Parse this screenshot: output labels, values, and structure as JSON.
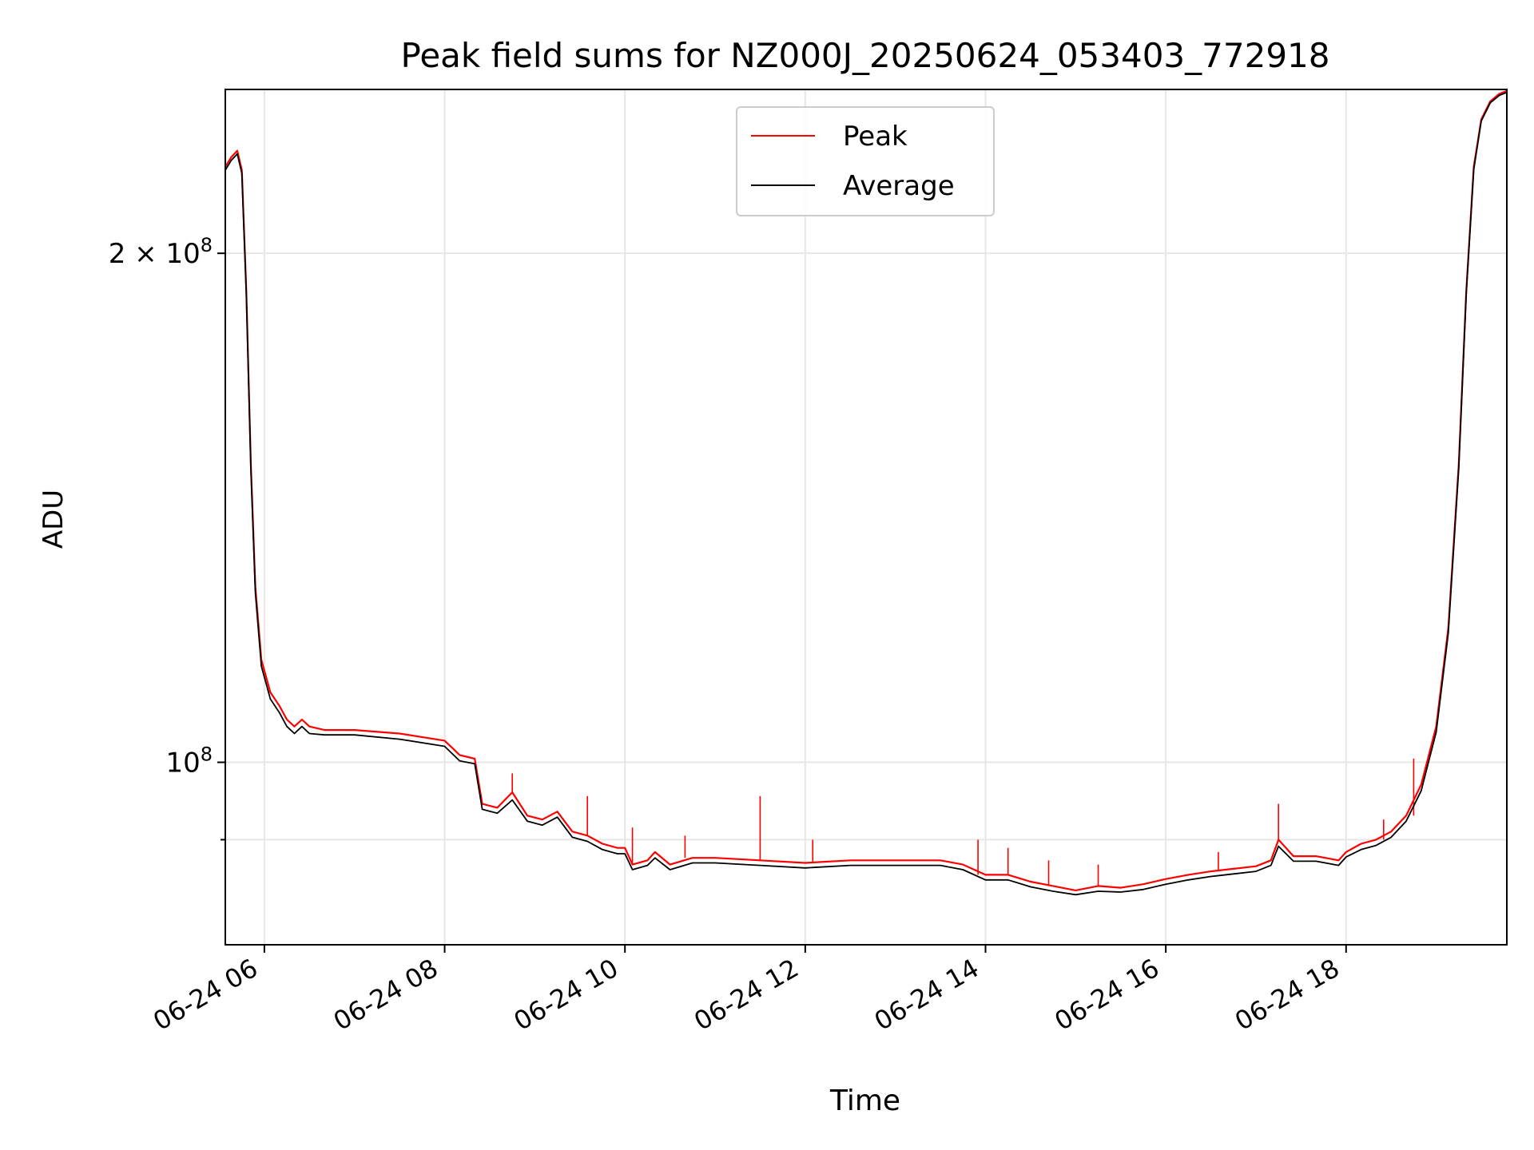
{
  "chart_data": {
    "type": "line",
    "title": "Peak field sums for NZ000J_20250624_053403_772918",
    "xlabel": "Time",
    "ylabel": "ADU",
    "y_scale": "log",
    "grid": true,
    "legend_position": "upper center",
    "x_range": [
      "2025-06-24 05:34",
      "2025-06-24 19:47"
    ],
    "y_range": [
      78000000,
      250000000
    ],
    "x_ticks": [
      {
        "label": "06-24 06",
        "value": "2025-06-24 06:00"
      },
      {
        "label": "06-24 08",
        "value": "2025-06-24 08:00"
      },
      {
        "label": "06-24 10",
        "value": "2025-06-24 10:00"
      },
      {
        "label": "06-24 12",
        "value": "2025-06-24 12:00"
      },
      {
        "label": "06-24 14",
        "value": "2025-06-24 14:00"
      },
      {
        "label": "06-24 16",
        "value": "2025-06-24 16:00"
      },
      {
        "label": "06-24 18",
        "value": "2025-06-24 18:00"
      }
    ],
    "y_ticks": [
      {
        "label_base": "10",
        "label_exp": "8",
        "value": 100000000,
        "minor": false
      },
      {
        "label_base": "2 × 10",
        "label_exp": "8",
        "value": 200000000,
        "minor": false
      },
      {
        "value": 90000000,
        "minor": true
      }
    ],
    "series": [
      {
        "name": "Peak",
        "color": "#ff0000",
        "points": [
          [
            "2025-06-24 05:34",
            225000000
          ],
          [
            "2025-06-24 05:38",
            228000000
          ],
          [
            "2025-06-24 05:42",
            230000000
          ],
          [
            "2025-06-24 05:45",
            224000000
          ],
          [
            "2025-06-24 05:48",
            190000000
          ],
          [
            "2025-06-24 05:51",
            150000000
          ],
          [
            "2025-06-24 05:54",
            127000000
          ],
          [
            "2025-06-24 05:58",
            115000000
          ],
          [
            "2025-06-24 06:04",
            110000000
          ],
          [
            "2025-06-24 06:10",
            108000000
          ],
          [
            "2025-06-24 06:15",
            106000000
          ],
          [
            "2025-06-24 06:20",
            105000000
          ],
          [
            "2025-06-24 06:25",
            106000000
          ],
          [
            "2025-06-24 06:30",
            105000000
          ],
          [
            "2025-06-24 06:40",
            104500000
          ],
          [
            "2025-06-24 07:00",
            104500000
          ],
          [
            "2025-06-24 07:30",
            104000000
          ],
          [
            "2025-06-24 08:00",
            103000000
          ],
          [
            "2025-06-24 08:05",
            102000000
          ],
          [
            "2025-06-24 08:10",
            101000000
          ],
          [
            "2025-06-24 08:20",
            100500000
          ],
          [
            "2025-06-24 08:25",
            94500000
          ],
          [
            "2025-06-24 08:35",
            94000000
          ],
          [
            "2025-06-24 08:45",
            96000000
          ],
          [
            "2025-06-24 08:55",
            93000000
          ],
          [
            "2025-06-24 09:05",
            92500000
          ],
          [
            "2025-06-24 09:15",
            93500000
          ],
          [
            "2025-06-24 09:25",
            91000000
          ],
          [
            "2025-06-24 09:35",
            90500000
          ],
          [
            "2025-06-24 09:45",
            89500000
          ],
          [
            "2025-06-24 09:55",
            89000000
          ],
          [
            "2025-06-24 10:00",
            89000000
          ],
          [
            "2025-06-24 10:05",
            87000000
          ],
          [
            "2025-06-24 10:15",
            87500000
          ],
          [
            "2025-06-24 10:20",
            88500000
          ],
          [
            "2025-06-24 10:30",
            87000000
          ],
          [
            "2025-06-24 10:45",
            87800000
          ],
          [
            "2025-06-24 11:00",
            87800000
          ],
          [
            "2025-06-24 11:30",
            87500000
          ],
          [
            "2025-06-24 12:00",
            87200000
          ],
          [
            "2025-06-24 12:30",
            87500000
          ],
          [
            "2025-06-24 13:00",
            87500000
          ],
          [
            "2025-06-24 13:30",
            87500000
          ],
          [
            "2025-06-24 13:45",
            87000000
          ],
          [
            "2025-06-24 14:00",
            85800000
          ],
          [
            "2025-06-24 14:15",
            85800000
          ],
          [
            "2025-06-24 14:30",
            85000000
          ],
          [
            "2025-06-24 14:45",
            84500000
          ],
          [
            "2025-06-24 15:00",
            84000000
          ],
          [
            "2025-06-24 15:15",
            84500000
          ],
          [
            "2025-06-24 15:30",
            84300000
          ],
          [
            "2025-06-24 15:45",
            84700000
          ],
          [
            "2025-06-24 16:00",
            85300000
          ],
          [
            "2025-06-24 16:15",
            85800000
          ],
          [
            "2025-06-24 16:30",
            86200000
          ],
          [
            "2025-06-24 16:45",
            86500000
          ],
          [
            "2025-06-24 17:00",
            86800000
          ],
          [
            "2025-06-24 17:10",
            87500000
          ],
          [
            "2025-06-24 17:15",
            90000000
          ],
          [
            "2025-06-24 17:25",
            88000000
          ],
          [
            "2025-06-24 17:40",
            88000000
          ],
          [
            "2025-06-24 17:55",
            87500000
          ],
          [
            "2025-06-24 18:00",
            88500000
          ],
          [
            "2025-06-24 18:10",
            89500000
          ],
          [
            "2025-06-24 18:20",
            90000000
          ],
          [
            "2025-06-24 18:30",
            91000000
          ],
          [
            "2025-06-24 18:40",
            93000000
          ],
          [
            "2025-06-24 18:50",
            97000000
          ],
          [
            "2025-06-24 19:00",
            105000000
          ],
          [
            "2025-06-24 19:08",
            120000000
          ],
          [
            "2025-06-24 19:15",
            150000000
          ],
          [
            "2025-06-24 19:20",
            190000000
          ],
          [
            "2025-06-24 19:25",
            225000000
          ],
          [
            "2025-06-24 19:30",
            240000000
          ],
          [
            "2025-06-24 19:36",
            246000000
          ],
          [
            "2025-06-24 19:42",
            248500000
          ],
          [
            "2025-06-24 19:47",
            249500000
          ]
        ],
        "spikes": [
          [
            "2025-06-24 08:45",
            98500000
          ],
          [
            "2025-06-24 09:35",
            95500000
          ],
          [
            "2025-06-24 10:05",
            91500000
          ],
          [
            "2025-06-24 10:40",
            90500000
          ],
          [
            "2025-06-24 11:30",
            95500000
          ],
          [
            "2025-06-24 12:05",
            90000000
          ],
          [
            "2025-06-24 13:55",
            90000000
          ],
          [
            "2025-06-24 14:15",
            89000000
          ],
          [
            "2025-06-24 14:42",
            87500000
          ],
          [
            "2025-06-24 15:15",
            87000000
          ],
          [
            "2025-06-24 16:35",
            88500000
          ],
          [
            "2025-06-24 17:15",
            94500000
          ],
          [
            "2025-06-24 18:25",
            92500000
          ],
          [
            "2025-06-24 18:45",
            100500000
          ]
        ]
      },
      {
        "name": "Average",
        "color": "#000000",
        "points": [
          [
            "2025-06-24 05:34",
            224000000
          ],
          [
            "2025-06-24 05:38",
            227000000
          ],
          [
            "2025-06-24 05:42",
            229000000
          ],
          [
            "2025-06-24 05:45",
            223000000
          ],
          [
            "2025-06-24 05:48",
            189000000
          ],
          [
            "2025-06-24 05:51",
            149000000
          ],
          [
            "2025-06-24 05:54",
            126000000
          ],
          [
            "2025-06-24 05:58",
            114000000
          ],
          [
            "2025-06-24 06:04",
            109000000
          ],
          [
            "2025-06-24 06:10",
            107000000
          ],
          [
            "2025-06-24 06:15",
            105000000
          ],
          [
            "2025-06-24 06:20",
            104000000
          ],
          [
            "2025-06-24 06:25",
            105000000
          ],
          [
            "2025-06-24 06:30",
            104000000
          ],
          [
            "2025-06-24 06:40",
            103800000
          ],
          [
            "2025-06-24 07:00",
            103800000
          ],
          [
            "2025-06-24 07:30",
            103200000
          ],
          [
            "2025-06-24 08:00",
            102200000
          ],
          [
            "2025-06-24 08:05",
            101200000
          ],
          [
            "2025-06-24 08:10",
            100200000
          ],
          [
            "2025-06-24 08:20",
            99800000
          ],
          [
            "2025-06-24 08:25",
            93800000
          ],
          [
            "2025-06-24 08:35",
            93300000
          ],
          [
            "2025-06-24 08:45",
            95000000
          ],
          [
            "2025-06-24 08:55",
            92300000
          ],
          [
            "2025-06-24 09:05",
            91800000
          ],
          [
            "2025-06-24 09:15",
            92800000
          ],
          [
            "2025-06-24 09:25",
            90300000
          ],
          [
            "2025-06-24 09:35",
            89800000
          ],
          [
            "2025-06-24 09:45",
            88800000
          ],
          [
            "2025-06-24 09:55",
            88300000
          ],
          [
            "2025-06-24 10:00",
            88300000
          ],
          [
            "2025-06-24 10:05",
            86400000
          ],
          [
            "2025-06-24 10:15",
            86900000
          ],
          [
            "2025-06-24 10:20",
            87800000
          ],
          [
            "2025-06-24 10:30",
            86400000
          ],
          [
            "2025-06-24 10:45",
            87200000
          ],
          [
            "2025-06-24 11:00",
            87200000
          ],
          [
            "2025-06-24 11:30",
            86900000
          ],
          [
            "2025-06-24 12:00",
            86600000
          ],
          [
            "2025-06-24 12:30",
            86900000
          ],
          [
            "2025-06-24 13:00",
            86900000
          ],
          [
            "2025-06-24 13:30",
            86900000
          ],
          [
            "2025-06-24 13:45",
            86400000
          ],
          [
            "2025-06-24 14:00",
            85200000
          ],
          [
            "2025-06-24 14:15",
            85200000
          ],
          [
            "2025-06-24 14:30",
            84400000
          ],
          [
            "2025-06-24 14:45",
            83900000
          ],
          [
            "2025-06-24 15:00",
            83500000
          ],
          [
            "2025-06-24 15:15",
            83900000
          ],
          [
            "2025-06-24 15:30",
            83800000
          ],
          [
            "2025-06-24 15:45",
            84100000
          ],
          [
            "2025-06-24 16:00",
            84700000
          ],
          [
            "2025-06-24 16:15",
            85200000
          ],
          [
            "2025-06-24 16:30",
            85600000
          ],
          [
            "2025-06-24 16:45",
            85900000
          ],
          [
            "2025-06-24 17:00",
            86200000
          ],
          [
            "2025-06-24 17:10",
            86900000
          ],
          [
            "2025-06-24 17:15",
            89200000
          ],
          [
            "2025-06-24 17:25",
            87400000
          ],
          [
            "2025-06-24 17:40",
            87400000
          ],
          [
            "2025-06-24 17:55",
            86900000
          ],
          [
            "2025-06-24 18:00",
            87900000
          ],
          [
            "2025-06-24 18:10",
            88800000
          ],
          [
            "2025-06-24 18:20",
            89300000
          ],
          [
            "2025-06-24 18:30",
            90300000
          ],
          [
            "2025-06-24 18:40",
            92300000
          ],
          [
            "2025-06-24 18:50",
            96200000
          ],
          [
            "2025-06-24 19:00",
            104200000
          ],
          [
            "2025-06-24 19:08",
            119200000
          ],
          [
            "2025-06-24 19:15",
            149200000
          ],
          [
            "2025-06-24 19:20",
            189200000
          ],
          [
            "2025-06-24 19:25",
            224200000
          ],
          [
            "2025-06-24 19:30",
            239500000
          ],
          [
            "2025-06-24 19:36",
            245500000
          ],
          [
            "2025-06-24 19:42",
            248000000
          ],
          [
            "2025-06-24 19:47",
            249000000
          ]
        ]
      }
    ]
  }
}
